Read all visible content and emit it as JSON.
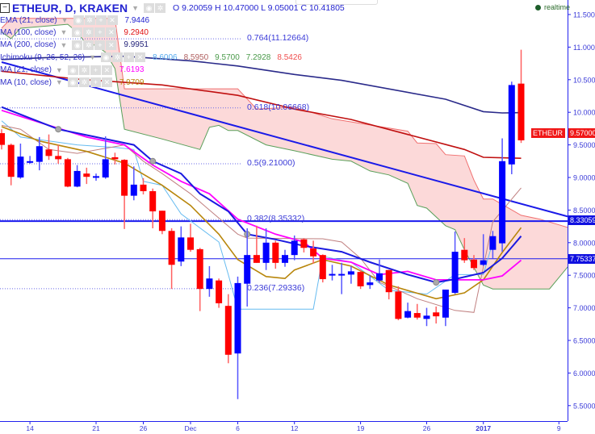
{
  "header": {
    "collapse": "−",
    "symbol": "ETHEUR, D, KRAKEN",
    "ohlc": "O 9.20059 H 10.47000 L 9.05001 C 10.41805",
    "realtime": "realtime"
  },
  "legend": [
    {
      "label": "EMA (21, close)",
      "values": [
        {
          "v": "7.9446",
          "color": "#2323d0"
        }
      ]
    },
    {
      "label": "MA (100, close)",
      "values": [
        {
          "v": "9.2940",
          "color": "#e01010"
        }
      ]
    },
    {
      "label": "MA (200, close)",
      "values": [
        {
          "v": "9.9951",
          "color": "#23237a"
        }
      ]
    },
    {
      "label": "Ichimoku (9, 26, 52, 26)",
      "values": [
        {
          "v": "8.6006",
          "color": "#55aaee"
        },
        {
          "v": "8.5950",
          "color": "#b06060"
        },
        {
          "v": "9.5700",
          "color": "#4a9a4a"
        },
        {
          "v": "7.2928",
          "color": "#4a9a4a"
        },
        {
          "v": "8.5426",
          "color": "#f05050"
        }
      ]
    },
    {
      "label": "MA (21, close)",
      "values": [
        {
          "v": "7.6193",
          "color": "#ff00ff"
        }
      ]
    },
    {
      "label": "MA (10, close)",
      "values": [
        {
          "v": "7.9709",
          "color": "#b8860b"
        }
      ]
    }
  ],
  "fib_levels": [
    {
      "label": "0.764(11.12664)",
      "price": 11.12664
    },
    {
      "label": "0.618(10.06668)",
      "price": 10.06668
    },
    {
      "label": "0.5(9.21000)",
      "price": 9.21
    },
    {
      "label": "0.382(8.35332)",
      "price": 8.35332
    },
    {
      "label": "0.236(7.29336)",
      "price": 7.29336
    }
  ],
  "price_tags": {
    "symbol_tag": "ETHEUR",
    "last": "9.57000",
    "last_price": 9.57,
    "hline1": "8.33059",
    "hline1_price": 8.33059,
    "hline2": "7.75337",
    "hline2_price": 7.75337
  },
  "colors": {
    "up": "#0000ff",
    "down": "#ff0000",
    "axis": "#2222ee",
    "cloud": "#fcd5d5"
  },
  "chart_data": {
    "type": "candlestick",
    "title": "ETHEUR, D, KRAKEN",
    "ylim": [
      5.2,
      11.75
    ],
    "y_ticks": [
      "11.50000",
      "11.00000",
      "10.50000",
      "10.00000",
      "9.50000",
      "9.00000",
      "8.50000",
      "8.00000",
      "7.50000",
      "7.00000",
      "6.50000",
      "6.00000",
      "5.50000"
    ],
    "x_ticks": [
      {
        "label": "14",
        "date": "2016-11-14"
      },
      {
        "label": "21",
        "date": "2016-11-21"
      },
      {
        "label": "26",
        "date": "2016-11-26"
      },
      {
        "label": "Dec",
        "date": "2016-12-01"
      },
      {
        "label": "6",
        "date": "2016-12-06"
      },
      {
        "label": "12",
        "date": "2016-12-12"
      },
      {
        "label": "19",
        "date": "2016-12-19"
      },
      {
        "label": "26",
        "date": "2016-12-26"
      },
      {
        "label": "2017",
        "date": "2017-01-01"
      },
      {
        "label": "9",
        "date": "2017-01-09"
      }
    ],
    "start_date": "2016-11-11",
    "candles_ohlc": [
      [
        9.68,
        9.74,
        9.43,
        9.5
      ],
      [
        9.5,
        9.52,
        8.88,
        9.01
      ],
      [
        9.0,
        9.52,
        8.98,
        9.32
      ],
      [
        9.24,
        9.33,
        9.21,
        9.25
      ],
      [
        9.24,
        9.62,
        9.11,
        9.48
      ],
      [
        9.43,
        9.66,
        9.27,
        9.33
      ],
      [
        9.33,
        9.5,
        9.21,
        9.28
      ],
      [
        9.28,
        9.3,
        8.85,
        8.86
      ],
      [
        8.86,
        9.19,
        8.85,
        9.1
      ],
      [
        9.06,
        9.15,
        8.9,
        9.01
      ],
      [
        9.01,
        9.06,
        8.95,
        9.02
      ],
      [
        9.0,
        9.63,
        8.98,
        9.28
      ],
      [
        9.31,
        9.38,
        9.2,
        9.28
      ],
      [
        9.27,
        9.28,
        8.21,
        8.72
      ],
      [
        8.72,
        9.17,
        8.65,
        8.89
      ],
      [
        8.89,
        8.99,
        8.74,
        8.79
      ],
      [
        8.79,
        8.83,
        8.22,
        8.48
      ],
      [
        8.49,
        8.49,
        8.13,
        8.18
      ],
      [
        8.18,
        8.22,
        7.29,
        7.66
      ],
      [
        7.71,
        8.25,
        7.64,
        8.08
      ],
      [
        8.08,
        8.29,
        7.86,
        7.89
      ],
      [
        7.9,
        7.92,
        6.95,
        7.29
      ],
      [
        7.29,
        7.64,
        7.17,
        7.45
      ],
      [
        7.42,
        7.45,
        7.0,
        7.07
      ],
      [
        7.03,
        7.21,
        6.15,
        6.28
      ],
      [
        6.3,
        7.48,
        5.6,
        7.38
      ],
      [
        7.37,
        8.22,
        7.02,
        7.81
      ],
      [
        7.81,
        8.26,
        7.69,
        7.69
      ],
      [
        7.69,
        8.22,
        7.58,
        8.0
      ],
      [
        8.0,
        8.03,
        7.6,
        7.69
      ],
      [
        7.69,
        7.89,
        7.63,
        7.81
      ],
      [
        7.81,
        8.11,
        7.73,
        8.03
      ],
      [
        8.05,
        8.07,
        7.85,
        7.92
      ],
      [
        7.91,
        8.03,
        7.68,
        7.79
      ],
      [
        7.81,
        7.82,
        7.39,
        7.44
      ],
      [
        7.51,
        7.66,
        7.42,
        7.52
      ],
      [
        7.51,
        7.69,
        7.21,
        7.52
      ],
      [
        7.51,
        7.64,
        7.37,
        7.56
      ],
      [
        7.55,
        7.58,
        7.29,
        7.33
      ],
      [
        7.35,
        7.5,
        7.29,
        7.39
      ],
      [
        7.42,
        7.74,
        7.39,
        7.53
      ],
      [
        7.58,
        7.58,
        7.13,
        7.24
      ],
      [
        7.25,
        7.33,
        6.81,
        6.83
      ],
      [
        6.85,
        7.08,
        6.84,
        6.95
      ],
      [
        6.92,
        7.06,
        6.82,
        6.85
      ],
      [
        6.83,
        7.0,
        6.72,
        6.88
      ],
      [
        6.93,
        7.02,
        6.76,
        6.87
      ],
      [
        6.85,
        7.28,
        6.72,
        7.28
      ],
      [
        7.23,
        8.17,
        7.21,
        7.86
      ],
      [
        7.89,
        8.07,
        7.69,
        7.73
      ],
      [
        7.74,
        7.81,
        7.58,
        7.61
      ],
      [
        7.66,
        8.13,
        7.64,
        7.73
      ],
      [
        7.89,
        8.18,
        7.76,
        8.1
      ],
      [
        7.99,
        9.6,
        7.86,
        9.25
      ],
      [
        9.20059,
        10.47,
        9.05001,
        10.41805
      ],
      [
        10.44,
        10.96,
        9.53,
        9.57
      ]
    ],
    "lines": [
      {
        "name": "MA (200, close)",
        "color": "#2a2a8a",
        "width": 1.6,
        "points": [
          [
            0,
            10.81
          ],
          [
            5,
            10.84
          ],
          [
            13,
            10.86
          ],
          [
            20,
            10.79
          ],
          [
            25,
            10.71
          ],
          [
            31,
            10.58
          ],
          [
            36,
            10.49
          ],
          [
            47,
            10.2
          ],
          [
            51,
            10.01
          ],
          [
            53,
            9.99
          ],
          [
            55,
            9.995
          ]
        ]
      },
      {
        "name": "MA (100, close)",
        "color": "#c01010",
        "width": 1.6,
        "points": [
          [
            0,
            10.63
          ],
          [
            8,
            10.51
          ],
          [
            17,
            10.42
          ],
          [
            25,
            10.26
          ],
          [
            31,
            10.05
          ],
          [
            37,
            9.89
          ],
          [
            43,
            9.66
          ],
          [
            49,
            9.43
          ],
          [
            51,
            9.31
          ],
          [
            55,
            9.294
          ]
        ]
      },
      {
        "name": "Ichimoku tenkan",
        "color": "#66bbf0",
        "width": 1,
        "points": [
          [
            0,
            9.87
          ],
          [
            2,
            9.62
          ],
          [
            8,
            9.5
          ],
          [
            12,
            9.46
          ],
          [
            14,
            9.43
          ],
          [
            15,
            8.94
          ],
          [
            17,
            8.88
          ],
          [
            19,
            8.44
          ],
          [
            23,
            8.01
          ],
          [
            24,
            7.51
          ],
          [
            25,
            6.98
          ],
          [
            33,
            6.98
          ],
          [
            34,
            7.79
          ],
          [
            37,
            7.7
          ],
          [
            41,
            7.27
          ],
          [
            45,
            7.21
          ],
          [
            48,
            7.51
          ],
          [
            51,
            7.51
          ],
          [
            52,
            8.01
          ]
        ]
      },
      {
        "name": "Ichimoku kijun",
        "color": "#c08080",
        "width": 1,
        "points": [
          [
            0,
            9.8
          ],
          [
            2,
            9.74
          ],
          [
            5,
            9.43
          ],
          [
            8,
            9.37
          ],
          [
            13,
            9.5
          ],
          [
            15,
            9.25
          ],
          [
            17,
            9.06
          ],
          [
            20,
            8.75
          ],
          [
            22,
            8.5
          ],
          [
            25,
            8.13
          ],
          [
            26,
            8.07
          ],
          [
            34,
            8.06
          ],
          [
            36,
            8.01
          ],
          [
            38,
            7.76
          ],
          [
            40,
            7.39
          ],
          [
            42,
            7.27
          ],
          [
            44,
            7.14
          ],
          [
            48,
            6.96
          ],
          [
            50,
            6.93
          ],
          [
            52,
            8.32
          ],
          [
            55,
            8.84
          ]
        ]
      },
      {
        "name": "MA (10, close)",
        "color": "#b8860b",
        "width": 1.6,
        "points": [
          [
            0,
            9.78
          ],
          [
            4,
            9.56
          ],
          [
            9,
            9.4
          ],
          [
            13,
            9.22
          ],
          [
            17,
            8.88
          ],
          [
            20,
            8.57
          ],
          [
            23,
            8.13
          ],
          [
            25,
            7.74
          ],
          [
            28,
            7.48
          ],
          [
            30,
            7.45
          ],
          [
            31,
            7.58
          ],
          [
            34,
            7.74
          ],
          [
            37,
            7.64
          ],
          [
            41,
            7.35
          ],
          [
            46,
            7.14
          ],
          [
            49,
            7.23
          ],
          [
            51,
            7.43
          ],
          [
            53,
            7.85
          ],
          [
            55,
            8.23
          ]
        ]
      },
      {
        "name": "MA (21, close)",
        "color": "#ff00ff",
        "width": 1.8,
        "points": [
          [
            0,
            10.03
          ],
          [
            5,
            9.8
          ],
          [
            9,
            9.62
          ],
          [
            13,
            9.5
          ],
          [
            16,
            9.19
          ],
          [
            19,
            8.94
          ],
          [
            22,
            8.75
          ],
          [
            25,
            8.36
          ],
          [
            29,
            8.13
          ],
          [
            32,
            8.01
          ],
          [
            34,
            7.76
          ],
          [
            37,
            7.7
          ],
          [
            40,
            7.51
          ],
          [
            43,
            7.56
          ],
          [
            46,
            7.43
          ],
          [
            51,
            7.43
          ],
          [
            53,
            7.49
          ],
          [
            55,
            7.73
          ]
        ]
      },
      {
        "name": "EMA (21, close)",
        "color": "#1a1ae0",
        "width": 2,
        "points": [
          [
            0,
            10.08
          ],
          [
            6,
            9.74
          ],
          [
            10,
            9.62
          ],
          [
            14,
            9.5
          ],
          [
            16,
            9.25
          ],
          [
            19,
            9.06
          ],
          [
            21,
            8.75
          ],
          [
            24,
            8.48
          ],
          [
            26,
            8.13
          ],
          [
            29,
            8.05
          ],
          [
            32,
            7.95
          ],
          [
            36,
            7.86
          ],
          [
            39,
            7.7
          ],
          [
            43,
            7.51
          ],
          [
            46,
            7.39
          ],
          [
            48,
            7.44
          ],
          [
            51,
            7.54
          ],
          [
            53,
            7.76
          ],
          [
            55,
            8.1
          ]
        ]
      }
    ],
    "ema_markers": [
      6,
      16,
      26,
      46
    ],
    "trendline": [
      [
        0,
        10.77
      ],
      [
        63,
        8.28
      ]
    ],
    "cloud": {
      "span_a": [
        [
          0,
          11.29
        ],
        [
          1,
          11.44
        ],
        [
          12,
          11.44
        ],
        [
          13,
          10.36
        ],
        [
          25,
          10.36
        ],
        [
          27,
          10.05
        ],
        [
          31,
          10.08
        ],
        [
          35,
          9.9
        ],
        [
          43,
          9.71
        ],
        [
          44,
          9.53
        ],
        [
          46,
          9.52
        ],
        [
          47,
          9.35
        ],
        [
          49,
          9.33
        ],
        [
          50,
          8.96
        ],
        [
          51,
          8.67
        ],
        [
          52,
          8.67
        ],
        [
          55,
          8.42
        ],
        [
          57,
          8.36
        ],
        [
          60,
          8.23
        ]
      ],
      "span_b": [
        [
          0,
          11.23
        ],
        [
          1,
          11.13
        ],
        [
          2,
          11.29
        ],
        [
          7,
          11.35
        ],
        [
          8,
          11.23
        ],
        [
          9,
          11.04
        ],
        [
          10,
          11.03
        ],
        [
          11,
          10.92
        ],
        [
          12,
          10.67
        ],
        [
          13,
          9.74
        ],
        [
          17,
          9.59
        ],
        [
          21,
          9.43
        ],
        [
          22,
          9.77
        ],
        [
          23,
          9.8
        ],
        [
          24,
          9.72
        ],
        [
          25,
          9.72
        ],
        [
          28,
          9.5
        ],
        [
          31,
          9.41
        ],
        [
          35,
          9.28
        ],
        [
          37,
          9.25
        ],
        [
          39,
          9.1
        ],
        [
          41,
          9.04
        ],
        [
          43,
          8.91
        ],
        [
          44,
          8.57
        ],
        [
          45,
          8.53
        ],
        [
          47,
          8.26
        ],
        [
          48,
          8.2
        ],
        [
          49,
          7.89
        ],
        [
          51,
          7.35
        ],
        [
          52,
          7.29
        ],
        [
          58,
          7.29
        ],
        [
          60,
          7.64
        ]
      ]
    }
  }
}
